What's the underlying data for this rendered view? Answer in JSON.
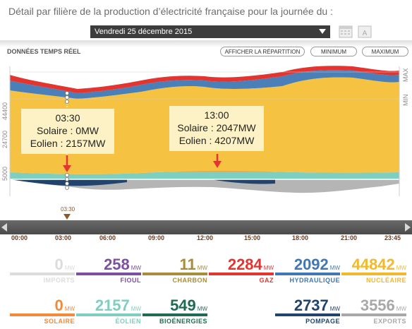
{
  "header": {
    "title": "Détail par filière de la production d’électricité française pour la journée du :",
    "date": "Vendredi 25 décembre 2015"
  },
  "toolbar": {
    "realtime": "DONNÉES TEMPS RÉEL",
    "repartition": "AFFICHER LA RÉPARTITION",
    "minimum": "MINIMUM",
    "maximum": "MAXIMUM"
  },
  "chart": {
    "y_ticks": [
      "44400",
      "24700",
      "5000"
    ],
    "right_labels": [
      "MAX",
      "MIN"
    ],
    "marker": "03:30",
    "x_ticks": [
      "00:00",
      "03:00",
      "06:00",
      "09:00",
      "12:00",
      "15:00",
      "18:00",
      "21:00",
      "23:45"
    ],
    "annotations": [
      {
        "time": "03:30",
        "solaire": "Solaire : 0MW",
        "eolien": "Eolien : 2157MW"
      },
      {
        "time": "13:00",
        "solaire": "Solaire : 2047MW",
        "eolien": "Eolien : 4207MW"
      }
    ],
    "colors": {
      "nucleaire": "#f5c242",
      "hydraulique": "#4a7fb8",
      "gaz": "#e3342f",
      "charbon": "#a88c3a",
      "fioul": "#7d4f9e",
      "eolien": "#7ecfc0",
      "solaire": "#f28a3a",
      "bioenergies": "#1f6b53",
      "pompage": "#20446e",
      "exports": "#b5b5b5",
      "imports": "#dcdcdc"
    }
  },
  "stats": [
    {
      "value": "0",
      "unit": "MW",
      "label": "IMPORTS",
      "color": "#dcdcdc"
    },
    {
      "value": "258",
      "unit": "MW",
      "label": "FIOUL",
      "color": "#7d4f9e"
    },
    {
      "value": "11",
      "unit": "MW",
      "label": "CHARBON",
      "color": "#a88c3a"
    },
    {
      "value": "2284",
      "unit": "MW",
      "label": "GAZ",
      "color": "#e3342f"
    },
    {
      "value": "2092",
      "unit": "MW",
      "label": "HYDRAULIQUE",
      "color": "#3f78b5"
    },
    {
      "value": "44842",
      "unit": "MW",
      "label": "NUCLÉAIRE",
      "color": "#f2b82e"
    },
    {
      "value": "0",
      "unit": "MW",
      "label": "SOLAIRE",
      "color": "#f28a3a"
    },
    {
      "value": "2157",
      "unit": "MW",
      "label": "ÉOLIEN",
      "color": "#7ecfc0"
    },
    {
      "value": "549",
      "unit": "MW",
      "label": "BIOÉNERGIES",
      "color": "#1f6b53"
    },
    {
      "value": "2737",
      "unit": "MW",
      "label": "POMPAGE",
      "color": "#20446e"
    },
    {
      "value": "3556",
      "unit": "MW",
      "label": "EXPORTS",
      "color": "#a8a8a8"
    }
  ]
}
